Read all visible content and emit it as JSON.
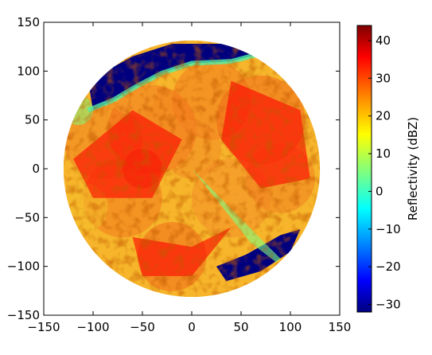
{
  "chart_data": {
    "type": "heatmap",
    "title": "",
    "xlabel": "",
    "ylabel": "",
    "xlim": [
      -150,
      150
    ],
    "ylim": [
      -150,
      150
    ],
    "x_ticks": [
      -150,
      -100,
      -50,
      0,
      50,
      100,
      150
    ],
    "y_ticks": [
      -150,
      -100,
      -50,
      0,
      50,
      100,
      150
    ],
    "x_tick_labels": [
      "−150",
      "−100",
      "−50",
      "0",
      "50",
      "100",
      "150"
    ],
    "y_tick_labels": [
      "−150",
      "−100",
      "−50",
      "0",
      "50",
      "100",
      "150"
    ],
    "grid": false,
    "radar_range": 130,
    "colorbar": {
      "label": "Reflectivity (dBZ)",
      "min": -32,
      "max": 44,
      "ticks": [
        -30,
        -20,
        -10,
        0,
        10,
        20,
        30,
        40
      ],
      "tick_labels": [
        "−30",
        "−20",
        "−10",
        "0",
        "10",
        "20",
        "30",
        "40"
      ],
      "colormap": [
        "#00007f",
        "#0000ff",
        "#007fff",
        "#00ffff",
        "#7fff7f",
        "#ffff00",
        "#ff7f00",
        "#ff0000",
        "#7f0000"
      ]
    },
    "regions": [
      {
        "name": "low-reflectivity-north",
        "dbz": -30,
        "polygon": [
          [
            -105,
            90
          ],
          [
            -60,
            115
          ],
          [
            -20,
            128
          ],
          [
            30,
            128
          ],
          [
            70,
            118
          ],
          [
            40,
            110
          ],
          [
            0,
            108
          ],
          [
            -30,
            98
          ],
          [
            -55,
            85
          ],
          [
            -80,
            70
          ],
          [
            -100,
            60
          ]
        ]
      },
      {
        "name": "low-reflectivity-southeast",
        "dbz": -30,
        "polygon": [
          [
            25,
            -100
          ],
          [
            55,
            -88
          ],
          [
            90,
            -68
          ],
          [
            110,
            -62
          ],
          [
            100,
            -85
          ],
          [
            70,
            -105
          ],
          [
            35,
            -115
          ]
        ]
      },
      {
        "name": "strong-echo-core-west",
        "dbz": 36,
        "polygon": [
          [
            -120,
            10
          ],
          [
            -60,
            60
          ],
          [
            -10,
            30
          ],
          [
            -40,
            -30
          ],
          [
            -100,
            -30
          ]
        ]
      },
      {
        "name": "strong-echo-core-east",
        "dbz": 38,
        "polygon": [
          [
            40,
            90
          ],
          [
            110,
            60
          ],
          [
            120,
            -10
          ],
          [
            70,
            -20
          ],
          [
            30,
            30
          ]
        ]
      },
      {
        "name": "strong-echo-core-south",
        "dbz": 34,
        "polygon": [
          [
            -60,
            -70
          ],
          [
            0,
            -80
          ],
          [
            40,
            -60
          ],
          [
            0,
            -110
          ],
          [
            -50,
            -110
          ]
        ]
      },
      {
        "name": "blocked-beam-wedge",
        "dbz": 2,
        "polygon": [
          [
            0,
            0
          ],
          [
            70,
            -72
          ],
          [
            90,
            -92
          ],
          [
            86,
            -96
          ],
          [
            60,
            -76
          ]
        ]
      }
    ]
  }
}
